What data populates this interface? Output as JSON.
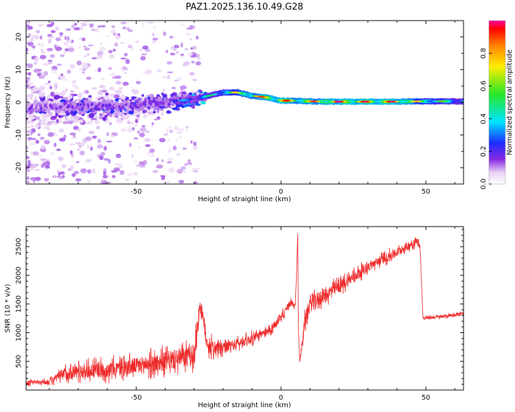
{
  "title": "PAZ1.2025.136.10.49.G28",
  "chart_data": [
    {
      "type": "heatmap",
      "xlabel": "Height of straight line (km)",
      "ylabel": "Frequency (Hz)",
      "xlim": [
        -88,
        63
      ],
      "ylim": [
        -25,
        25
      ],
      "xticks": [
        -50,
        0,
        50
      ],
      "yticks": [
        20,
        10,
        0,
        -10,
        -20
      ],
      "grid": false,
      "colorbar": {
        "label": "Normalized spectral amplitude",
        "range": [
          0,
          1
        ],
        "ticks": [
          0.0,
          0.2,
          0.4,
          0.6,
          0.8
        ],
        "colormap": "rainbow"
      },
      "ridge": {
        "description_points_x": [
          -88,
          -70,
          -50,
          -40,
          -30,
          -25,
          -20,
          -15,
          -10,
          -5,
          0,
          5,
          10,
          15,
          20,
          30,
          40,
          50,
          63
        ],
        "frequency_hz": [
          -1.5,
          -1.5,
          -1,
          0,
          1,
          2,
          3,
          3,
          2,
          1.5,
          0.5,
          0.5,
          0.3,
          0.2,
          0.2,
          0.2,
          0.2,
          0.3,
          0.3
        ],
        "amplitude": [
          0.25,
          0.3,
          0.3,
          0.3,
          0.4,
          0.5,
          0.6,
          0.75,
          0.85,
          0.95,
          1.0,
          0.9,
          0.9,
          0.95,
          1.0,
          1.0,
          1.0,
          0.7,
          0.5
        ]
      }
    },
    {
      "type": "line",
      "xlabel": "Height of straight line (km)",
      "ylabel": "SNR (10 * v/v)",
      "xlim": [
        -88,
        63
      ],
      "ylim": [
        0,
        2850
      ],
      "xticks": [
        -50,
        0,
        50
      ],
      "yticks": [
        500,
        1000,
        1500,
        2000,
        2500
      ],
      "grid": false,
      "series": [
        {
          "color": "#ee2a2a",
          "x": [
            -88,
            -80,
            -75,
            -70,
            -60,
            -50,
            -40,
            -30,
            -28,
            -25,
            -20,
            -10,
            -5,
            0,
            3,
            5,
            5.8,
            6,
            6.5,
            8,
            10,
            15,
            20,
            30,
            40,
            45,
            47,
            48,
            49,
            55,
            63
          ],
          "y": [
            130,
            140,
            280,
            330,
            350,
            420,
            500,
            600,
            1500,
            750,
            720,
            900,
            1000,
            1250,
            1500,
            1500,
            2750,
            1050,
            480,
            1150,
            1500,
            1650,
            1800,
            2150,
            2400,
            2550,
            2600,
            2500,
            1250,
            1280,
            1330
          ],
          "noise_amplitude": [
            60,
            70,
            200,
            230,
            240,
            260,
            300,
            330,
            300,
            260,
            180,
            140,
            130,
            130,
            120,
            100,
            0,
            0,
            50,
            220,
            260,
            220,
            200,
            150,
            140,
            130,
            120,
            80,
            50,
            50,
            50
          ]
        }
      ]
    }
  ]
}
